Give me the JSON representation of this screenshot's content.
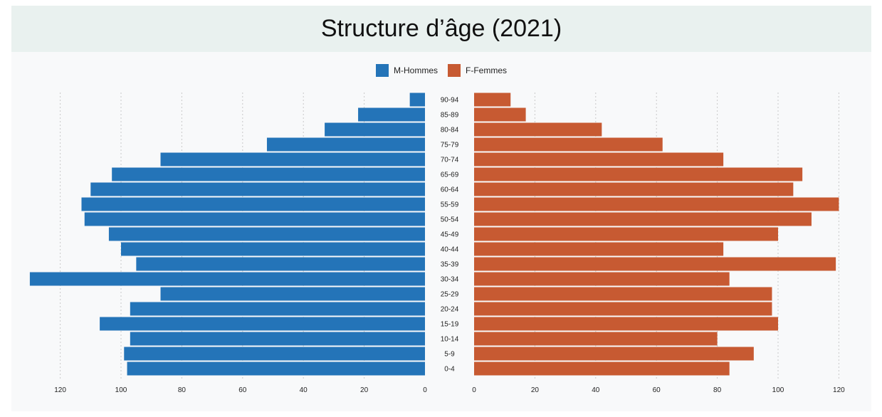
{
  "title": "Structure d’âge (2021)",
  "legend": {
    "male_label": "M-Hommes",
    "female_label": "F-Femmes"
  },
  "colors": {
    "male": "#2474b8",
    "female": "#c75a32",
    "grid": "#c9c9c9",
    "panel_bg": "#f8f9fa",
    "title_bg": "#e9f1ef"
  },
  "chart_data": {
    "type": "bar",
    "orientation": "horizontal",
    "subtype": "population-pyramid",
    "categories": [
      "90-94",
      "85-89",
      "80-84",
      "75-79",
      "70-74",
      "65-69",
      "60-64",
      "55-59",
      "50-54",
      "45-49",
      "40-44",
      "35-39",
      "30-34",
      "25-29",
      "20-24",
      "15-19",
      "10-14",
      "5-9",
      "0-4"
    ],
    "series": [
      {
        "name": "M-Hommes",
        "side": "left",
        "values": [
          5,
          22,
          33,
          52,
          87,
          103,
          110,
          113,
          112,
          104,
          100,
          95,
          130,
          87,
          97,
          107,
          97,
          99,
          98
        ]
      },
      {
        "name": "F-Femmes",
        "side": "right",
        "values": [
          12,
          17,
          42,
          62,
          82,
          108,
          105,
          120,
          111,
          100,
          82,
          119,
          84,
          98,
          98,
          100,
          80,
          92,
          84
        ]
      }
    ],
    "x_ticks_left": [
      120,
      100,
      80,
      60,
      40,
      20,
      0
    ],
    "x_ticks_right": [
      0,
      20,
      40,
      60,
      80,
      100,
      120
    ],
    "xlim": [
      0,
      120
    ],
    "grid": true,
    "legend_position": "top-center"
  }
}
